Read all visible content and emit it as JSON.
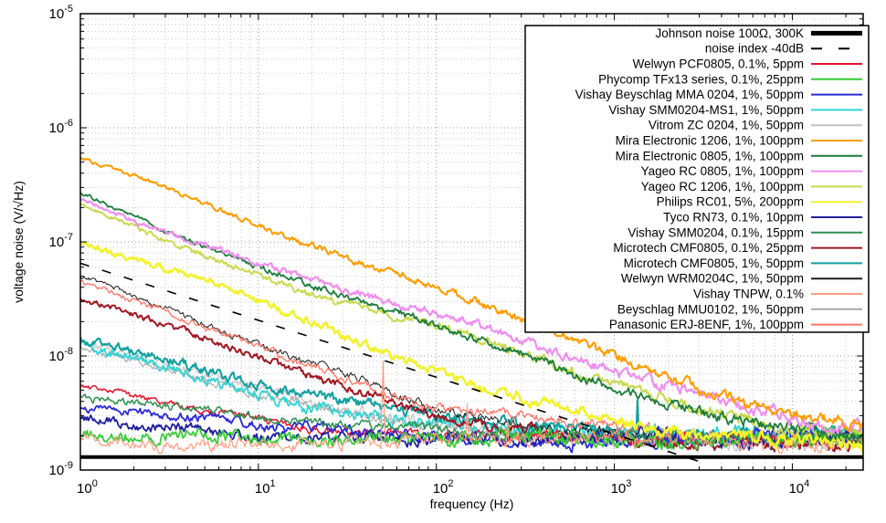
{
  "chart_data": {
    "type": "line",
    "title": "",
    "xlabel": "frequency (Hz)",
    "ylabel": "voltage noise (V/√Hz)",
    "xscale": "log",
    "yscale": "log",
    "xlim": [
      1,
      25000
    ],
    "ylim": [
      1e-09,
      1e-05
    ],
    "grid": "dotted major+minor, both axes",
    "legend_position": "top-right",
    "x_tick_exponents": [
      0,
      1,
      2,
      3,
      4
    ],
    "y_tick_exponents": [
      -5,
      -6,
      -7,
      -8,
      -9
    ],
    "series": [
      {
        "id": "johnson",
        "name": "Johnson noise 100Ω, 300K",
        "color": "#000000",
        "width": 4,
        "zorder": 20,
        "noise": [
          0,
          0
        ],
        "points": [
          [
            1,
            1.3e-09
          ],
          [
            25000,
            1.3e-09
          ]
        ]
      },
      {
        "id": "noise-index",
        "name": "noise index -40dB",
        "color": "#000000",
        "width": 1.6,
        "dash": "10,15",
        "zorder": 19,
        "noise": [
          0,
          0
        ],
        "points": [
          [
            1,
            6.5e-08
          ],
          [
            3000,
            1.19e-09
          ]
        ]
      },
      {
        "id": "welwyn-pcf0805",
        "name": "Welwyn PCF0805, 0.1%, 5ppm",
        "color": "#e8112d",
        "width": 1.5,
        "zorder": 8,
        "noise": [
          0.022,
          0.05
        ],
        "points": [
          [
            1,
            5.4e-09
          ],
          [
            3,
            3.9e-09
          ],
          [
            10,
            2.9e-09
          ],
          [
            30,
            2.3e-09
          ],
          [
            100,
            2.05e-09
          ],
          [
            300,
            1.95e-09
          ],
          [
            1000,
            1.9e-09
          ],
          [
            25000,
            1.85e-09
          ]
        ]
      },
      {
        "id": "phycomp-tfx13",
        "name": "Phycomp TFx13 series, 0.1%, 25ppm",
        "color": "#35cc35",
        "width": 1.7,
        "zorder": 12,
        "noise": [
          0.045,
          0.06
        ],
        "points": [
          [
            1,
            2.1e-09
          ],
          [
            3,
            1.85e-09
          ],
          [
            10,
            1.95e-09
          ],
          [
            30,
            1.8e-09
          ],
          [
            100,
            1.85e-09
          ],
          [
            1000,
            1.8e-09
          ],
          [
            25000,
            1.8e-09
          ]
        ]
      },
      {
        "id": "vishay-mma0204",
        "name": "Vishay Beyschlag MMA 0204, 1%, 50ppm",
        "color": "#2b2bd5",
        "width": 1.8,
        "zorder": 9,
        "noise": [
          0.03,
          0.055
        ],
        "points": [
          [
            1,
            3.6e-09
          ],
          [
            3,
            3.1e-09
          ],
          [
            10,
            2.6e-09
          ],
          [
            30,
            2.3e-09
          ],
          [
            100,
            2.1e-09
          ],
          [
            300,
            2e-09
          ],
          [
            1000,
            1.9e-09
          ],
          [
            25000,
            1.85e-09
          ]
        ]
      },
      {
        "id": "vishay-smm0204-ms1",
        "name": "Vishay SMM0204-MS1, 1%, 50ppm",
        "color": "#2fd5d5",
        "width": 1.8,
        "zorder": 3,
        "noise": [
          0.035,
          0.06
        ],
        "points": [
          [
            1,
            1.27e-08
          ],
          [
            3,
            7.6e-09
          ],
          [
            10,
            4.6e-09
          ],
          [
            30,
            3.3e-09
          ],
          [
            100,
            2.5e-09
          ],
          [
            300,
            2.2e-09
          ],
          [
            1000,
            2.15e-09
          ],
          [
            3000,
            2.1e-09
          ],
          [
            25000,
            2.05e-09
          ]
        ]
      },
      {
        "id": "vitrom-zc0204",
        "name": "Vitrom ZC 0204, 1%, 50ppm",
        "color": "#c4c4c4",
        "width": 1.3,
        "zorder": 1,
        "noise": [
          0.03,
          0.055
        ],
        "points": [
          [
            1,
            1.35e-08
          ],
          [
            3,
            8.2e-09
          ],
          [
            10,
            4.9e-09
          ],
          [
            30,
            3.4e-09
          ],
          [
            100,
            2.4e-09
          ],
          [
            300,
            2.1e-09
          ],
          [
            1000,
            1.95e-09
          ],
          [
            25000,
            1.9e-09
          ]
        ]
      },
      {
        "id": "mira-1206",
        "name": "Mira Electronic 1206, 1%, 100ppm",
        "color": "#ff9d00",
        "width": 2.1,
        "zorder": 18,
        "noise": [
          0.012,
          0.045
        ],
        "points": [
          [
            1,
            5.5e-07
          ],
          [
            3,
            3e-07
          ],
          [
            10,
            1.4e-07
          ],
          [
            30,
            7.6e-08
          ],
          [
            100,
            4e-08
          ],
          [
            300,
            2.1e-08
          ],
          [
            1000,
            1e-08
          ],
          [
            3000,
            5.2e-09
          ],
          [
            10000,
            3e-09
          ],
          [
            25000,
            2.4e-09
          ]
        ]
      },
      {
        "id": "mira-0805",
        "name": "Mira Electronic 0805, 1%, 100ppm",
        "color": "#1b7d3c",
        "width": 1.8,
        "zorder": 16,
        "noise": [
          0.013,
          0.05
        ],
        "points": [
          [
            1,
            2.7e-07
          ],
          [
            3,
            1.25e-07
          ],
          [
            10,
            6e-08
          ],
          [
            30,
            3.3e-08
          ],
          [
            100,
            1.8e-08
          ],
          [
            300,
            1e-08
          ],
          [
            1000,
            5.4e-09
          ],
          [
            3000,
            3.2e-09
          ],
          [
            10000,
            2.1e-09
          ],
          [
            25000,
            1.85e-09
          ]
        ]
      },
      {
        "id": "yageo-rc0805",
        "name": "Yageo RC 0805, 1%, 100ppm",
        "color": "#ef8fef",
        "width": 2.2,
        "zorder": 17,
        "noise": [
          0.015,
          0.05
        ],
        "points": [
          [
            1,
            2.4e-07
          ],
          [
            3,
            1.2e-07
          ],
          [
            10,
            6.4e-08
          ],
          [
            30,
            3.8e-08
          ],
          [
            100,
            2.4e-08
          ],
          [
            300,
            1.4e-08
          ],
          [
            1000,
            7.5e-09
          ],
          [
            3000,
            4.4e-09
          ],
          [
            10000,
            2.7e-09
          ],
          [
            25000,
            2.2e-09
          ]
        ]
      },
      {
        "id": "yageo-rc1206",
        "name": "Yageo RC 1206, 1%, 100ppm",
        "color": "#c9d94e",
        "width": 2.0,
        "zorder": 15,
        "noise": [
          0.015,
          0.05
        ],
        "points": [
          [
            1,
            2.2e-07
          ],
          [
            3,
            1.05e-07
          ],
          [
            10,
            5.2e-08
          ],
          [
            30,
            3e-08
          ],
          [
            100,
            1.85e-08
          ],
          [
            300,
            1.05e-08
          ],
          [
            1000,
            5.6e-09
          ],
          [
            3000,
            3.3e-09
          ],
          [
            10000,
            2.1e-09
          ],
          [
            25000,
            1.8e-09
          ]
        ]
      },
      {
        "id": "philips-rc01",
        "name": "Philips RC01, 5%, 200ppm",
        "color": "#f2f22e",
        "width": 2.6,
        "zorder": 14,
        "noise": [
          0.02,
          0.05
        ],
        "points": [
          [
            1,
            1e-07
          ],
          [
            3,
            6e-08
          ],
          [
            10,
            3e-08
          ],
          [
            30,
            1.5e-08
          ],
          [
            100,
            7.5e-09
          ],
          [
            300,
            4.2e-09
          ],
          [
            1000,
            2.7e-09
          ],
          [
            3000,
            2e-09
          ],
          [
            10000,
            1.7e-09
          ],
          [
            25000,
            1.55e-09
          ]
        ]
      },
      {
        "id": "tyco-rn73",
        "name": "Tyco RN73, 0.1%, 10ppm",
        "color": "#20209f",
        "width": 1.8,
        "zorder": 10,
        "noise": [
          0.035,
          0.055
        ],
        "points": [
          [
            1,
            2.9e-09
          ],
          [
            3,
            2.45e-09
          ],
          [
            10,
            2.1e-09
          ],
          [
            30,
            1.95e-09
          ],
          [
            100,
            1.9e-09
          ],
          [
            1000,
            1.85e-09
          ],
          [
            25000,
            1.8e-09
          ]
        ]
      },
      {
        "id": "vishay-smm0204",
        "name": "Vishay SMM0204, 0.1%, 15ppm",
        "color": "#2e9150",
        "width": 1.5,
        "zorder": 11,
        "noise": [
          0.025,
          0.05
        ],
        "points": [
          [
            1,
            4.3e-09
          ],
          [
            3,
            3.6e-09
          ],
          [
            10,
            2.9e-09
          ],
          [
            30,
            2.4e-09
          ],
          [
            100,
            2.1e-09
          ],
          [
            300,
            2e-09
          ],
          [
            1000,
            1.9e-09
          ],
          [
            25000,
            1.85e-09
          ]
        ]
      },
      {
        "id": "microtech-cmf0805-01",
        "name": "Microtech CMF0805, 0.1%, 25ppm",
        "color": "#a01622",
        "width": 2.0,
        "zorder": 7,
        "noise": [
          0.02,
          0.05
        ],
        "points": [
          [
            1,
            3.2e-08
          ],
          [
            3,
            1.8e-08
          ],
          [
            10,
            9.5e-09
          ],
          [
            30,
            5.4e-09
          ],
          [
            100,
            3e-09
          ],
          [
            300,
            2.2e-09
          ],
          [
            1000,
            1.9e-09
          ],
          [
            3000,
            1.8e-09
          ],
          [
            25000,
            1.75e-09
          ]
        ]
      },
      {
        "id": "microtech-cmf0805-1",
        "name": "Microtech CMF0805, 1%, 50ppm",
        "color": "#12a0a0",
        "width": 2.1,
        "zorder": 4,
        "noise": [
          0.03,
          0.06
        ],
        "spikes": [
          {
            "f": 1350,
            "v": 4.2e-09
          }
        ],
        "points": [
          [
            1,
            1.4e-08
          ],
          [
            3,
            9.3e-09
          ],
          [
            10,
            5.8e-09
          ],
          [
            30,
            4e-09
          ],
          [
            100,
            2.9e-09
          ],
          [
            300,
            2.45e-09
          ],
          [
            1000,
            2.25e-09
          ],
          [
            3000,
            2.15e-09
          ],
          [
            25000,
            2.05e-09
          ]
        ]
      },
      {
        "id": "welwyn-wrm0204c",
        "name": "Welwyn WRM0204C, 1%, 50ppm",
        "color": "#1a1a1a",
        "width": 1.0,
        "zorder": 5,
        "noise": [
          0.018,
          0.05
        ],
        "points": [
          [
            1,
            5.1e-08
          ],
          [
            3,
            2.7e-08
          ],
          [
            10,
            1.25e-08
          ],
          [
            30,
            6.8e-09
          ],
          [
            100,
            3.6e-09
          ],
          [
            300,
            2.5e-09
          ],
          [
            1000,
            2e-09
          ],
          [
            3000,
            1.85e-09
          ],
          [
            25000,
            1.8e-09
          ]
        ]
      },
      {
        "id": "vishay-tnpw",
        "name": "Vishay TNPW, 0.1%",
        "color": "#ff9d80",
        "width": 1.2,
        "zorder": 13,
        "noise": [
          0.04,
          0.06
        ],
        "spikes": [
          {
            "f": 50,
            "v": 9e-09
          },
          {
            "f": 150,
            "v": 3.8e-09
          },
          {
            "f": 250,
            "v": 2.8e-09
          }
        ],
        "points": [
          [
            1,
            1.9e-09
          ],
          [
            3,
            1.75e-09
          ],
          [
            10,
            1.8e-09
          ],
          [
            30,
            1.8e-09
          ],
          [
            100,
            1.8e-09
          ],
          [
            1000,
            1.8e-09
          ],
          [
            25000,
            1.8e-09
          ]
        ]
      },
      {
        "id": "beyschlag-mmu0102",
        "name": "Beyschlag MMU0102, 1%, 50ppm",
        "color": "#a9a9a9",
        "width": 1.1,
        "zorder": 2,
        "noise": [
          0.025,
          0.05
        ],
        "points": [
          [
            1,
            1.2e-08
          ],
          [
            3,
            7.4e-09
          ],
          [
            10,
            4.4e-09
          ],
          [
            30,
            3.1e-09
          ],
          [
            100,
            2.3e-09
          ],
          [
            300,
            2.05e-09
          ],
          [
            1000,
            1.95e-09
          ],
          [
            25000,
            1.9e-09
          ]
        ]
      },
      {
        "id": "panasonic-erj8enf",
        "name": "Panasonic ERJ-8ENF, 1%, 100ppm",
        "color": "#ff7566",
        "width": 1.3,
        "zorder": 6,
        "noise": [
          0.02,
          0.05
        ],
        "points": [
          [
            1,
            4.4e-08
          ],
          [
            3,
            2.4e-08
          ],
          [
            10,
            1.2e-08
          ],
          [
            30,
            6.6e-09
          ],
          [
            100,
            3.5e-09
          ],
          [
            300,
            2.7e-09
          ],
          [
            1000,
            2.2e-09
          ],
          [
            3000,
            2e-09
          ],
          [
            10000,
            1.9e-09
          ],
          [
            25000,
            1.9e-09
          ]
        ]
      }
    ]
  }
}
